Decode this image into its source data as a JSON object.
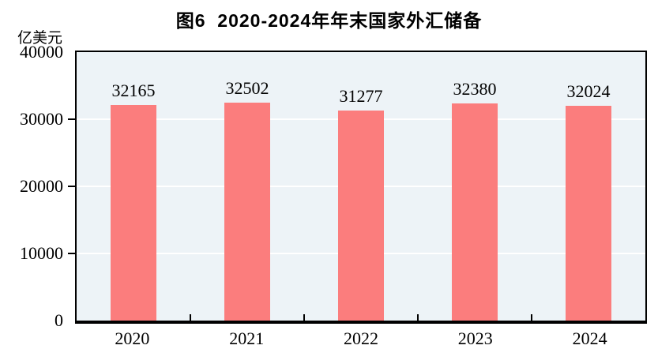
{
  "chart_data": {
    "type": "bar",
    "title": "图6  2020-2024年年末国家外汇储备",
    "unit_label": "亿美元",
    "categories": [
      "2020",
      "2021",
      "2022",
      "2023",
      "2024"
    ],
    "values": [
      32165,
      32502,
      31277,
      32380,
      32024
    ],
    "ylim": [
      0,
      40000
    ],
    "yticks": [
      0,
      10000,
      20000,
      30000,
      40000
    ],
    "grid": "horizontal white lines at interior yticks",
    "legend": "none",
    "colors": {
      "bar": "#fb7d7d",
      "plot_background": "#edf3f7",
      "gridline": "#ffffff",
      "axis": "#000000",
      "text": "#000000"
    }
  }
}
